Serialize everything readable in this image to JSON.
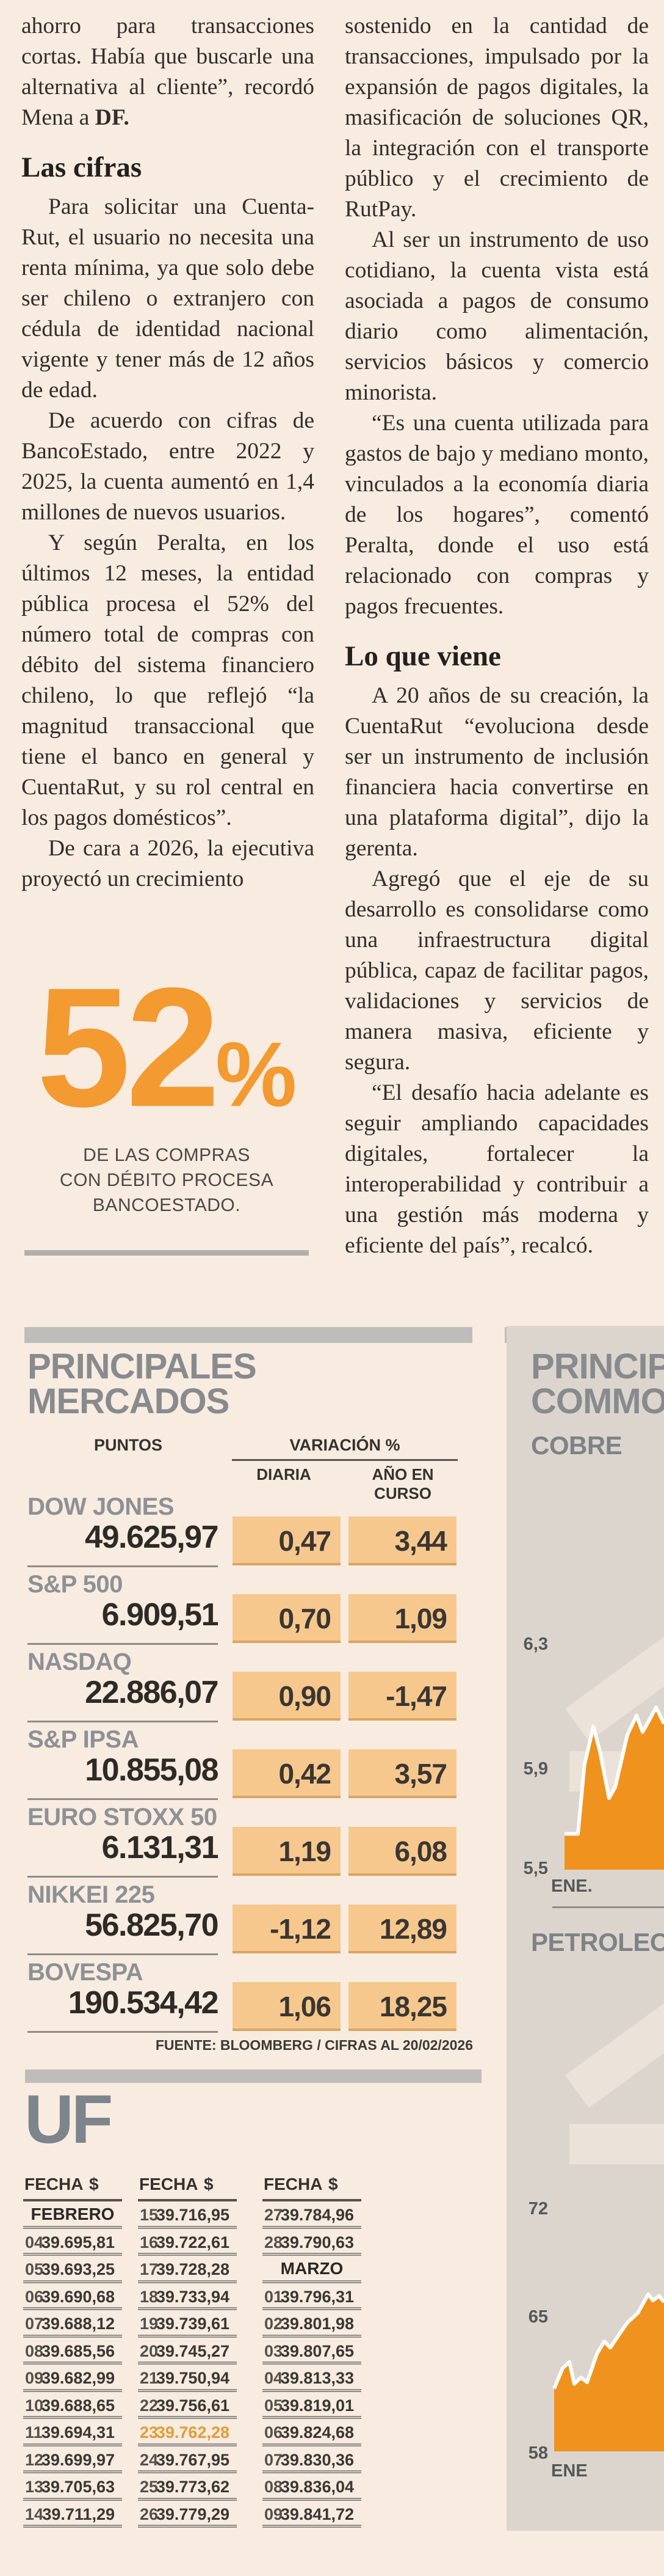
{
  "colors": {
    "page_bg": "#f8ebe0",
    "accent_orange": "#f2952f",
    "cell_orange": "#f6c88e",
    "section_gray": "#dcd5ce",
    "title_gray": "#878b8e"
  },
  "article": {
    "left": {
      "p0a": "ahorro para transacciones cortas. Había que buscarle una alternativa al cliente”, recordó Mena a ",
      "p0b": "DF.",
      "heading": "Las cifras",
      "p1": "Para solicitar una Cuenta­Rut, el usuario no necesita una renta mínima, ya que solo debe ser chileno o extranjero con cédula de identidad nacional vigente y tener más de 12 años de edad.",
      "p2": "De acuerdo con cifras de BancoEstado, entre 2022 y 2025, la cuenta aumentó en 1,4 millones de nuevos usuarios.",
      "p3": "Y según Peralta, en los últimos 12 meses, la entidad pública procesa el 52% del número total de compras con débito del sistema financiero chileno, lo que reflejó “la magnitud transaccional que tiene el banco en general y CuentaRut, y su rol central en los pagos domésticos”.",
      "p4": "De cara a 2026, la ejecutiva proyectó un crecimiento"
    },
    "right": {
      "p0": "sostenido en la cantidad de transacciones, impulsado por la expansión de pagos digitales, la masificación de soluciones QR, la integración con el transporte público y el crecimiento de RutPay.",
      "p1": "Al ser un instrumento de uso cotidiano, la cuenta vista está asociada a pagos de consumo diario como alimentación, servicios básicos y comercio minorista.",
      "p2": "“Es una cuenta utilizada para gastos de bajo y mediano monto, vinculados a la economía diaria de los hogares”, comentó Peralta, donde el uso está relacionado con compras y pagos frecuentes.",
      "heading": "Lo que viene",
      "p3": "A 20 años de su creación, la CuentaRut “evoluciona desde ser un instrumento de inclusión financiera hacia convertirse en una plataforma digital”, dijo la gerenta.",
      "p4": "Agregó que el eje de su desarrollo es consolidarse como una infraestructura digital pública, capaz de facilitar pagos, validaciones y servicios de manera masiva, eficiente y segura.",
      "p5": "“El desafío hacia adelante es seguir ampliando capacidades digitales, fortalecer la interoperabilidad y contribuir a una gestión más moderna y eficiente del país”, recalcó."
    }
  },
  "stat": {
    "value": "52",
    "unit": "%",
    "caption_lines": [
      "DE LAS COMPRAS",
      "CON DÉBITO PROCESA",
      "BANCOESTADO."
    ]
  },
  "markets": {
    "title_line1": "PRINCIPALES",
    "title_line2": "MERCADOS",
    "col_puntos": "PUNTOS",
    "col_variacion": "VARIACIÓN %",
    "col_diaria": "DIARIA",
    "col_ytd": "AÑO EN CURSO",
    "rows": [
      {
        "name": "DOW JONES",
        "points": "49.625,97",
        "daily": "0,47",
        "ytd": "3,44"
      },
      {
        "name": "S&P 500",
        "points": "6.909,51",
        "daily": "0,70",
        "ytd": "1,09"
      },
      {
        "name": "NASDAQ",
        "points": "22.886,07",
        "daily": "0,90",
        "ytd": "-1,47"
      },
      {
        "name": "S&P IPSA",
        "points": "10.855,08",
        "daily": "0,42",
        "ytd": "3,57"
      },
      {
        "name": "EURO STOXX 50",
        "points": "6.131,31",
        "daily": "1,19",
        "ytd": "6,08"
      },
      {
        "name": "NIKKEI 225",
        "points": "56.825,70",
        "daily": "-1,12",
        "ytd": "12,89"
      },
      {
        "name": "BOVESPA",
        "points": "190.534,42",
        "daily": "1,06",
        "ytd": "18,25"
      }
    ],
    "source": "FUENTE: BLOOMBERG / CIFRAS AL 20/02/2026"
  },
  "commodities": {
    "title_line1": "PRINCIPALES",
    "title_line2": "COMMODITIES"
  },
  "chart_data": [
    {
      "type": "area",
      "title": "COBRE",
      "ylabels": [
        "6,3",
        "5,9",
        "5,5"
      ],
      "xlabel": "ENE.",
      "ymin": 5.5,
      "ymax": 6.41,
      "color": "#f0921e",
      "x": [
        0,
        0.135,
        0.2,
        0.29,
        0.356,
        0.448,
        0.51,
        0.632,
        0.724,
        0.785,
        0.847,
        0.92,
        1.0
      ],
      "values": [
        5.63,
        5.63,
        5.88,
        6.02,
        5.93,
        5.76,
        5.8,
        5.99,
        6.06,
        6.0,
        6.04,
        6.09,
        6.03
      ]
    },
    {
      "type": "area",
      "title": "PETROLEO",
      "ylabels": [
        "72",
        "65",
        "58"
      ],
      "xlabel": "ENE",
      "ymin": 56.6,
      "ymax": 74.3,
      "color": "#f0921e",
      "x": [
        0,
        0.078,
        0.139,
        0.183,
        0.244,
        0.3,
        0.389,
        0.456,
        0.511,
        0.578,
        0.667,
        0.761,
        0.856,
        0.9,
        0.956,
        1.0
      ],
      "values": [
        60.6,
        61.9,
        62.3,
        60.9,
        61.3,
        61.0,
        62.8,
        63.6,
        63.2,
        63.9,
        64.8,
        65.4,
        66.6,
        66.2,
        66.5,
        66.1
      ]
    }
  ],
  "uf": {
    "title": "UF",
    "header_fecha": "FECHA",
    "header_amount": "$",
    "columns": [
      {
        "rows": [
          {
            "month": "FEBRERO"
          },
          {
            "d": "04",
            "v": "39.695,81"
          },
          {
            "d": "05",
            "v": "39.693,25"
          },
          {
            "d": "06",
            "v": "39.690,68"
          },
          {
            "d": "07",
            "v": "39.688,12"
          },
          {
            "d": "08",
            "v": "39.685,56"
          },
          {
            "d": "09",
            "v": "39.682,99"
          },
          {
            "d": "10",
            "v": "39.688,65"
          },
          {
            "d": "11",
            "v": "39.694,31"
          },
          {
            "d": "12",
            "v": "39.699,97"
          },
          {
            "d": "13",
            "v": "39.705,63"
          },
          {
            "d": "14",
            "v": "39.711,29"
          }
        ]
      },
      {
        "rows": [
          {
            "d": "15",
            "v": "39.716,95"
          },
          {
            "d": "16",
            "v": "39.722,61"
          },
          {
            "d": "17",
            "v": "39.728,28"
          },
          {
            "d": "18",
            "v": "39.733,94"
          },
          {
            "d": "19",
            "v": "39.739,61"
          },
          {
            "d": "20",
            "v": "39.745,27"
          },
          {
            "d": "21",
            "v": "39.750,94"
          },
          {
            "d": "22",
            "v": "39.756,61"
          },
          {
            "d": "23",
            "v": "39.762,28",
            "hl": true
          },
          {
            "d": "24",
            "v": "39.767,95"
          },
          {
            "d": "25",
            "v": "39.773,62"
          },
          {
            "d": "26",
            "v": "39.779,29"
          }
        ]
      },
      {
        "rows": [
          {
            "d": "27",
            "v": "39.784,96"
          },
          {
            "d": "28",
            "v": "39.790,63"
          },
          {
            "month": "MARZO"
          },
          {
            "d": "01",
            "v": "39.796,31"
          },
          {
            "d": "02",
            "v": "39.801,98"
          },
          {
            "d": "03",
            "v": "39.807,65"
          },
          {
            "d": "04",
            "v": "39.813,33"
          },
          {
            "d": "05",
            "v": "39.819,01"
          },
          {
            "d": "06",
            "v": "39.824,68"
          },
          {
            "d": "07",
            "v": "39.830,36"
          },
          {
            "d": "08",
            "v": "39.836,04"
          },
          {
            "d": "09",
            "v": "39.841,72"
          }
        ]
      }
    ]
  }
}
